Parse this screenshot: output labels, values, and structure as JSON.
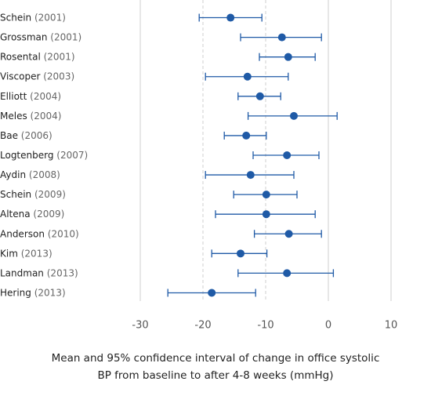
{
  "chart_data": {
    "type": "forest",
    "categories": [
      "Schein",
      "Grossman",
      "Rosental",
      "Viscoper",
      "Elliott",
      "Meles",
      "Bae",
      "Logtenberg",
      "Aydin",
      "Schein",
      "Altena",
      "Anderson",
      "Kim",
      "Landman",
      "Hering"
    ],
    "category_years": [
      "(2001)",
      "(2001)",
      "(2001)",
      "(2003)",
      "(2004)",
      "(2004)",
      "(2006)",
      "(2007)",
      "(2008)",
      "(2009)",
      "(2009)",
      "(2010)",
      "(2013)",
      "(2013)",
      "(2013)"
    ],
    "values": [
      -15.6,
      -7.4,
      -6.4,
      -12.9,
      -10.9,
      -5.5,
      -13.1,
      -6.6,
      -12.4,
      -9.9,
      -9.9,
      -6.3,
      -14,
      -6.6,
      -18.6
    ],
    "lower": [
      -20.6,
      -14,
      -11,
      -19.6,
      -14.4,
      -12.8,
      -16.6,
      -12,
      -19.6,
      -15.1,
      -18,
      -11.8,
      -18.6,
      -14.4,
      -25.6
    ],
    "upper": [
      -10.6,
      -1.1,
      -2.1,
      -6.4,
      -7.6,
      1.4,
      -9.9,
      -1.5,
      -5.5,
      -5,
      -2.1,
      -1.1,
      -9.8,
      0.8,
      -11.6
    ],
    "color": "#1f5aa6",
    "xlim": [
      -30,
      10
    ],
    "xticks": [
      -30,
      -20,
      -10,
      0,
      10
    ],
    "grid_dash": [
      "solid",
      "dashed",
      "dashed",
      "solid",
      "solid"
    ],
    "xlabel": [
      "Mean and 95% confidence interval of change in office systolic",
      "BP from baseline to after 4-8 weeks (mmHg)"
    ]
  }
}
